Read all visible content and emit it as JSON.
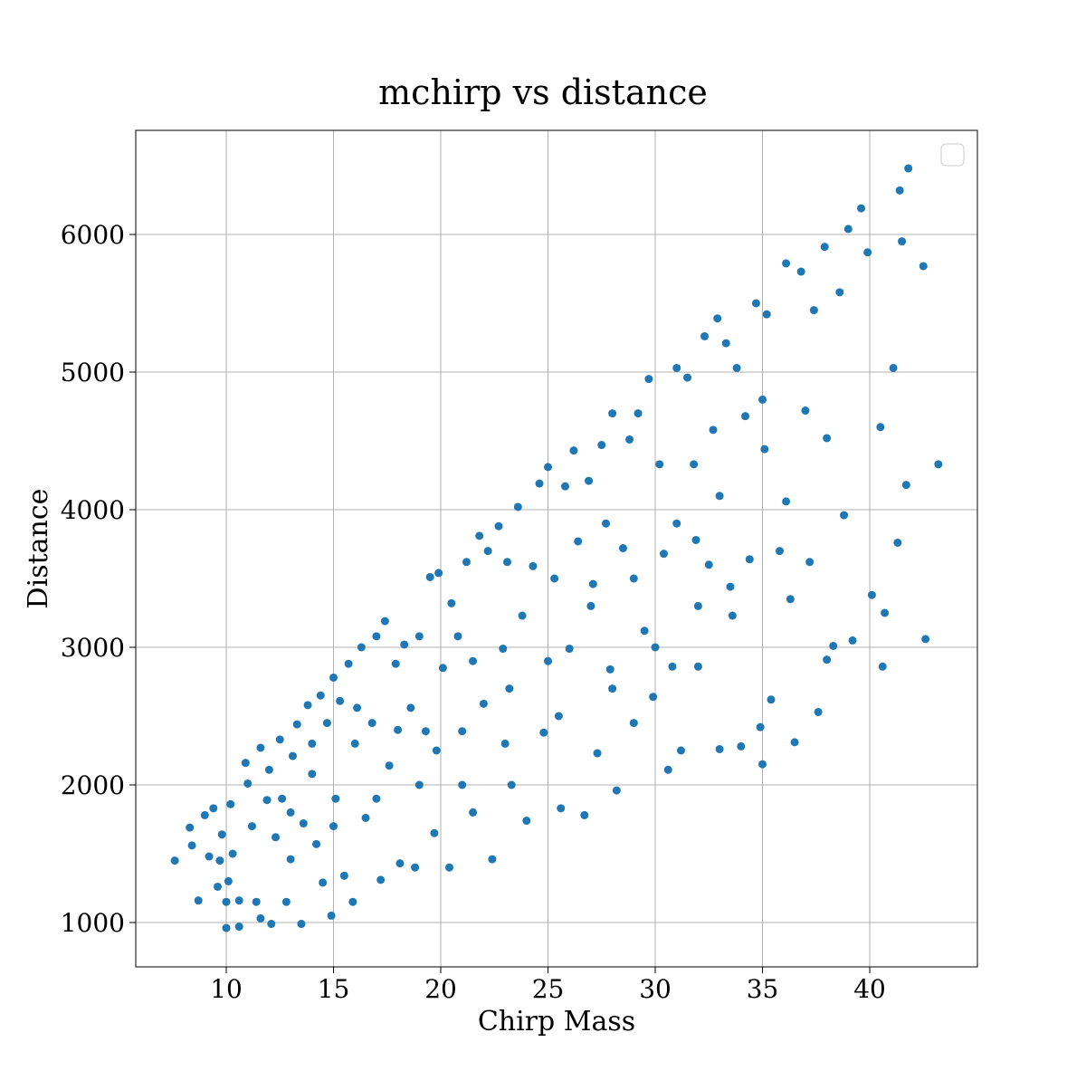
{
  "chart_data": {
    "type": "scatter",
    "title": "mchirp vs distance",
    "x_label": "Chirp Mass",
    "y_label": "Distance",
    "xlim": [
      5.78,
      45.02
    ],
    "ylim": [
      677.6,
      6756.6
    ],
    "xticks": [
      10,
      15,
      20,
      25,
      30,
      35,
      40
    ],
    "yticks": [
      1000,
      2000,
      3000,
      4000,
      5000,
      6000
    ],
    "grid": true,
    "legend": "upper right",
    "color": "#1f77b4",
    "x": [
      7.6,
      8.3,
      8.4,
      8.7,
      9.0,
      9.2,
      9.4,
      9.6,
      9.7,
      9.8,
      10.0,
      10.0,
      10.1,
      10.2,
      10.3,
      10.6,
      10.6,
      10.9,
      11.0,
      11.2,
      11.4,
      11.6,
      11.6,
      11.9,
      12.0,
      12.1,
      12.3,
      12.5,
      12.8,
      13.0,
      13.1,
      13.3,
      13.5,
      13.6,
      13.8,
      14.0,
      14.2,
      14.4,
      14.5,
      14.7,
      14.9,
      15.0,
      15.1,
      15.3,
      15.5,
      15.7,
      15.9,
      16.1,
      16.3,
      16.5,
      16.8,
      17.0,
      17.2,
      17.4,
      17.6,
      17.9,
      18.1,
      18.3,
      18.6,
      18.8,
      19.0,
      19.3,
      19.5,
      19.7,
      19.9,
      20.1,
      20.4,
      20.5,
      20.8,
      21.0,
      21.2,
      21.5,
      21.8,
      22.0,
      22.2,
      22.4,
      22.7,
      22.9,
      23.1,
      23.3,
      23.6,
      23.8,
      24.0,
      24.3,
      24.6,
      24.8,
      25.0,
      25.3,
      25.6,
      25.8,
      26.0,
      26.2,
      26.4,
      26.7,
      26.9,
      27.1,
      27.3,
      27.5,
      27.7,
      27.9,
      28.0,
      28.2,
      28.5,
      28.8,
      29.0,
      29.2,
      29.5,
      29.7,
      29.9,
      30.2,
      30.4,
      30.6,
      31.0,
      31.2,
      31.5,
      31.8,
      32.0,
      32.3,
      32.5,
      32.7,
      32.9,
      33.0,
      33.3,
      33.5,
      33.8,
      34.0,
      34.2,
      34.4,
      34.7,
      34.9,
      35.1,
      35.2,
      35.4,
      35.8,
      36.1,
      36.3,
      36.5,
      36.8,
      37.0,
      37.2,
      37.4,
      37.6,
      37.9,
      38.0,
      38.3,
      38.6,
      38.8,
      39.0,
      39.2,
      39.6,
      39.9,
      40.1,
      40.5,
      40.6,
      41.1,
      41.3,
      41.4,
      41.5,
      41.7,
      41.8,
      42.5,
      42.6,
      43.2,
      40.7,
      38.0,
      36.1,
      35.0,
      33.6,
      31.9,
      30.8,
      12.6,
      14.0,
      16.0,
      18.0,
      19.8,
      21.5,
      23.2,
      25.0,
      27.0,
      29.0,
      31.0,
      33.0,
      35.0,
      13.0,
      15.0,
      17.0,
      19.0,
      21.0,
      23.0,
      25.5,
      28.0,
      30.0,
      32.0
    ],
    "y": [
      1450,
      1690,
      1560,
      1160,
      1780,
      1480,
      1830,
      1260,
      1450,
      1640,
      1150,
      960,
      1300,
      1860,
      1500,
      1160,
      970,
      2160,
      2010,
      1700,
      1150,
      2270,
      1030,
      1890,
      2110,
      990,
      1620,
      2330,
      1150,
      1460,
      2210,
      2440,
      990,
      1720,
      2580,
      2300,
      1570,
      2650,
      1290,
      2450,
      1050,
      2780,
      1900,
      2610,
      1340,
      2880,
      1150,
      2560,
      3000,
      1760,
      2450,
      3080,
      1310,
      3190,
      2140,
      2880,
      1430,
      3020,
      2560,
      1400,
      3080,
      2390,
      3510,
      1650,
      3540,
      2850,
      1400,
      3320,
      3080,
      2390,
      3620,
      1800,
      3810,
      2590,
      3700,
      1460,
      3880,
      2990,
      3620,
      2000,
      4020,
      3230,
      1740,
      3590,
      4190,
      2380,
      4310,
      3500,
      1830,
      4170,
      2990,
      4430,
      3770,
      1780,
      4210,
      3460,
      2230,
      4470,
      3900,
      2840,
      4700,
      1960,
      3720,
      4510,
      2450,
      4700,
      3120,
      4950,
      2640,
      4330,
      3680,
      2110,
      5030,
      2250,
      4960,
      4330,
      2860,
      5260,
      3600,
      4580,
      5390,
      2260,
      5210,
      3440,
      5030,
      2280,
      4680,
      3640,
      5500,
      2420,
      4440,
      5420,
      2620,
      3700,
      5790,
      3350,
      2310,
      5730,
      4720,
      3620,
      5450,
      2530,
      5910,
      4520,
      3010,
      5580,
      3960,
      6040,
      3050,
      6190,
      5870,
      3380,
      4600,
      2860,
      5030,
      3760,
      6320,
      5950,
      4180,
      6480,
      5770,
      3060,
      4330,
      3250,
      2910,
      4060,
      2150,
      3230,
      3780,
      2860,
      1900,
      2080,
      2300,
      2400,
      2250,
      2900,
      2700,
      2900,
      3300,
      3500,
      3900,
      4100,
      4800,
      1800,
      1700,
      1900,
      2000,
      2000,
      2300,
      2500,
      2700,
      3000,
      3300
    ]
  }
}
